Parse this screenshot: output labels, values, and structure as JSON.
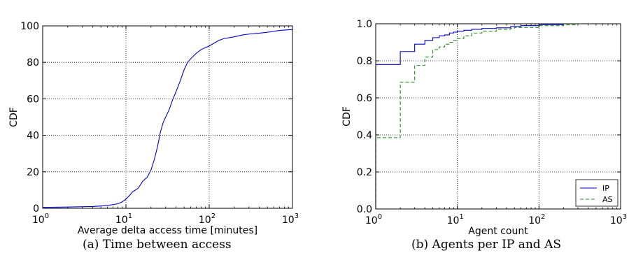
{
  "chart_data": [
    {
      "type": "line",
      "caption": "(a) Time between access",
      "xlabel": "Average delta access time [minutes]",
      "ylabel": "CDF",
      "xscale": "log",
      "xlim": [
        1,
        1000
      ],
      "ylim": [
        0,
        100
      ],
      "xticks": [
        {
          "value": 1,
          "base": "10",
          "exp": "0"
        },
        {
          "value": 10,
          "base": "10",
          "exp": "1"
        },
        {
          "value": 100,
          "base": "10",
          "exp": "2"
        },
        {
          "value": 1000,
          "base": "10",
          "exp": "3"
        }
      ],
      "yticks": [
        {
          "value": 0,
          "label": "0"
        },
        {
          "value": 20,
          "label": "20"
        },
        {
          "value": 40,
          "label": "40"
        },
        {
          "value": 60,
          "label": "60"
        },
        {
          "value": 80,
          "label": "80"
        },
        {
          "value": 100,
          "label": "100"
        }
      ],
      "grid": true,
      "series": [
        {
          "color": "#0000cc",
          "dash": "",
          "step": false,
          "points": [
            [
              1,
              0.5
            ],
            [
              2,
              0.7
            ],
            [
              4,
              1
            ],
            [
              6,
              1.5
            ],
            [
              8,
              2.5
            ],
            [
              9,
              3.5
            ],
            [
              10,
              5
            ],
            [
              11,
              7
            ],
            [
              12,
              9
            ],
            [
              13,
              10
            ],
            [
              14,
              11
            ],
            [
              15,
              13
            ],
            [
              16,
              15
            ],
            [
              18,
              17
            ],
            [
              20,
              21
            ],
            [
              22,
              27
            ],
            [
              24,
              34
            ],
            [
              26,
              42
            ],
            [
              28,
              47
            ],
            [
              30,
              50
            ],
            [
              33,
              54
            ],
            [
              36,
              59
            ],
            [
              40,
              64
            ],
            [
              45,
              70
            ],
            [
              50,
              76
            ],
            [
              55,
              80
            ],
            [
              60,
              82
            ],
            [
              70,
              85
            ],
            [
              80,
              87
            ],
            [
              100,
              89
            ],
            [
              130,
              92
            ],
            [
              150,
              93
            ],
            [
              200,
              94
            ],
            [
              250,
              95
            ],
            [
              300,
              95.5
            ],
            [
              400,
              96
            ],
            [
              500,
              96.5
            ],
            [
              700,
              97.5
            ],
            [
              1000,
              98
            ]
          ]
        }
      ]
    },
    {
      "type": "line",
      "caption": "(b) Agents per IP and AS",
      "xlabel": "Agent count",
      "ylabel": "CDF",
      "xscale": "log",
      "xlim": [
        1,
        1000
      ],
      "ylim": [
        0,
        1
      ],
      "xticks": [
        {
          "value": 1,
          "base": "10",
          "exp": "0"
        },
        {
          "value": 10,
          "base": "10",
          "exp": "1"
        },
        {
          "value": 100,
          "base": "10",
          "exp": "2"
        },
        {
          "value": 1000,
          "base": "10",
          "exp": "3"
        }
      ],
      "yticks": [
        {
          "value": 0,
          "label": "0.0"
        },
        {
          "value": 0.2,
          "label": "0.2"
        },
        {
          "value": 0.4,
          "label": "0.4"
        },
        {
          "value": 0.6,
          "label": "0.6"
        },
        {
          "value": 0.8,
          "label": "0.8"
        },
        {
          "value": 1,
          "label": "1.0"
        }
      ],
      "grid": true,
      "legend_position": "bottom-right",
      "series": [
        {
          "name": "IP",
          "color": "#0000cc",
          "dash": "",
          "step": true,
          "points": [
            [
              1,
              0
            ],
            [
              1,
              0.78
            ],
            [
              2,
              0.85
            ],
            [
              3,
              0.89
            ],
            [
              4,
              0.91
            ],
            [
              5,
              0.925
            ],
            [
              6,
              0.935
            ],
            [
              7,
              0.94
            ],
            [
              8,
              0.95
            ],
            [
              9,
              0.955
            ],
            [
              10,
              0.96
            ],
            [
              12,
              0.965
            ],
            [
              15,
              0.97
            ],
            [
              20,
              0.975
            ],
            [
              30,
              0.978
            ],
            [
              45,
              0.985
            ],
            [
              60,
              0.99
            ],
            [
              100,
              0.995
            ],
            [
              200,
              1.0
            ],
            [
              1000,
              1.0
            ]
          ]
        },
        {
          "name": "AS",
          "color": "#228b22",
          "dash": "5,3",
          "step": true,
          "points": [
            [
              1,
              0
            ],
            [
              1,
              0.385
            ],
            [
              2,
              0.685
            ],
            [
              3,
              0.775
            ],
            [
              4,
              0.82
            ],
            [
              5,
              0.86
            ],
            [
              6,
              0.875
            ],
            [
              7,
              0.89
            ],
            [
              8,
              0.9
            ],
            [
              9,
              0.91
            ],
            [
              10,
              0.92
            ],
            [
              12,
              0.935
            ],
            [
              15,
              0.95
            ],
            [
              20,
              0.96
            ],
            [
              30,
              0.97
            ],
            [
              45,
              0.975
            ],
            [
              50,
              0.98
            ],
            [
              100,
              0.99
            ],
            [
              200,
              0.995
            ],
            [
              300,
              1.0
            ],
            [
              1000,
              1.0
            ]
          ]
        }
      ]
    }
  ]
}
